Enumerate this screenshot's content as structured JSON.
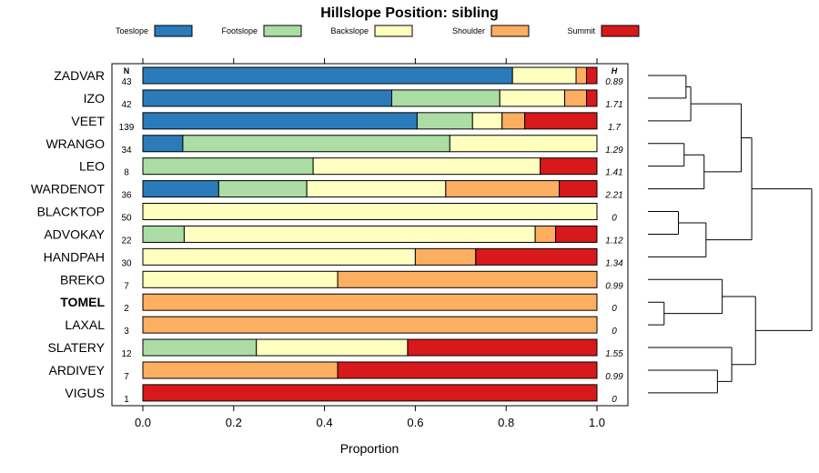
{
  "chart_data": {
    "type": "stacked-bar-horizontal",
    "title": "Hillslope Position: sibling",
    "xlabel": "Proportion",
    "ylabel": "",
    "xlim": [
      0,
      1
    ],
    "x_ticks": [
      "0.0",
      "0.2",
      "0.4",
      "0.6",
      "0.8",
      "1.0"
    ],
    "n_header": "N",
    "h_header": "H",
    "legend": [
      {
        "name": "Toeslope",
        "color": "#2b7bba"
      },
      {
        "name": "Footslope",
        "color": "#abdda4"
      },
      {
        "name": "Backslope",
        "color": "#ffffbf"
      },
      {
        "name": "Shoulder",
        "color": "#fdae61"
      },
      {
        "name": "Summit",
        "color": "#d7191c"
      }
    ],
    "rows": [
      {
        "label": "ZADVAR",
        "n": "43",
        "h": "0.89",
        "values": [
          0.814,
          0,
          0.14,
          0.023,
          0.023
        ]
      },
      {
        "label": "IZO",
        "n": "42",
        "h": "1.71",
        "values": [
          0.548,
          0.238,
          0.143,
          0.048,
          0.023
        ]
      },
      {
        "label": "VEET",
        "n": "139",
        "h": "1.7",
        "values": [
          0.604,
          0.122,
          0.065,
          0.05,
          0.159
        ]
      },
      {
        "label": "WRANGO",
        "n": "34",
        "h": "1.29",
        "values": [
          0.088,
          0.588,
          0.324,
          0,
          0
        ]
      },
      {
        "label": "LEO",
        "n": "8",
        "h": "1.41",
        "values": [
          0,
          0.375,
          0.5,
          0,
          0.125
        ]
      },
      {
        "label": "WARDENOT",
        "n": "36",
        "h": "2.21",
        "values": [
          0.167,
          0.194,
          0.306,
          0.25,
          0.083
        ]
      },
      {
        "label": "BLACKTOP",
        "n": "50",
        "h": "0",
        "values": [
          0,
          0,
          1,
          0,
          0
        ]
      },
      {
        "label": "ADVOKAY",
        "n": "22",
        "h": "1.12",
        "values": [
          0,
          0.091,
          0.773,
          0.045,
          0.091
        ]
      },
      {
        "label": "HANDPAH",
        "n": "30",
        "h": "1.34",
        "values": [
          0,
          0,
          0.6,
          0.133,
          0.267
        ]
      },
      {
        "label": "BREKO",
        "n": "7",
        "h": "0.99",
        "values": [
          0,
          0,
          0.429,
          0.571,
          0
        ]
      },
      {
        "label": "TOMEL",
        "n": "2",
        "h": "0",
        "values": [
          0,
          0,
          0,
          1,
          0
        ],
        "bold": true
      },
      {
        "label": "LAXAL",
        "n": "3",
        "h": "0",
        "values": [
          0,
          0,
          0,
          1,
          0
        ]
      },
      {
        "label": "SLATERY",
        "n": "12",
        "h": "1.55",
        "values": [
          0,
          0.25,
          0.333,
          0,
          0.417
        ]
      },
      {
        "label": "ARDIVEY",
        "n": "7",
        "h": "0.99",
        "values": [
          0,
          0,
          0,
          0.429,
          0.571
        ]
      },
      {
        "label": "VIGUS",
        "n": "1",
        "h": "0",
        "values": [
          0,
          0,
          0,
          0,
          1
        ]
      }
    ],
    "dendrogram": {
      "merges": [
        {
          "a": "ZADVAR",
          "b": "IZO",
          "height": 0.4
        },
        {
          "a": "m0",
          "b": "VEET",
          "height": 0.45
        },
        {
          "a": "WRANGO",
          "b": "LEO",
          "height": 0.38
        },
        {
          "a": "m2",
          "b": "WARDENOT",
          "height": 0.59
        },
        {
          "a": "m1",
          "b": "m3",
          "height": 0.98
        },
        {
          "a": "BLACKTOP",
          "b": "ADVOKAY",
          "height": 0.32
        },
        {
          "a": "m5",
          "b": "HANDPAH",
          "height": 0.61
        },
        {
          "a": "m4",
          "b": "m6",
          "height": 1.09
        },
        {
          "a": "TOMEL",
          "b": "LAXAL",
          "height": 0.17
        },
        {
          "a": "BREKO",
          "b": "m8",
          "height": 0.78
        },
        {
          "a": "ARDIVEY",
          "b": "VIGUS",
          "height": 0.73
        },
        {
          "a": "SLATERY",
          "b": "m10",
          "height": 0.88
        },
        {
          "a": "m9",
          "b": "m11",
          "height": 1.13
        },
        {
          "a": "m7",
          "b": "m12",
          "height": 1.72
        }
      ]
    }
  }
}
